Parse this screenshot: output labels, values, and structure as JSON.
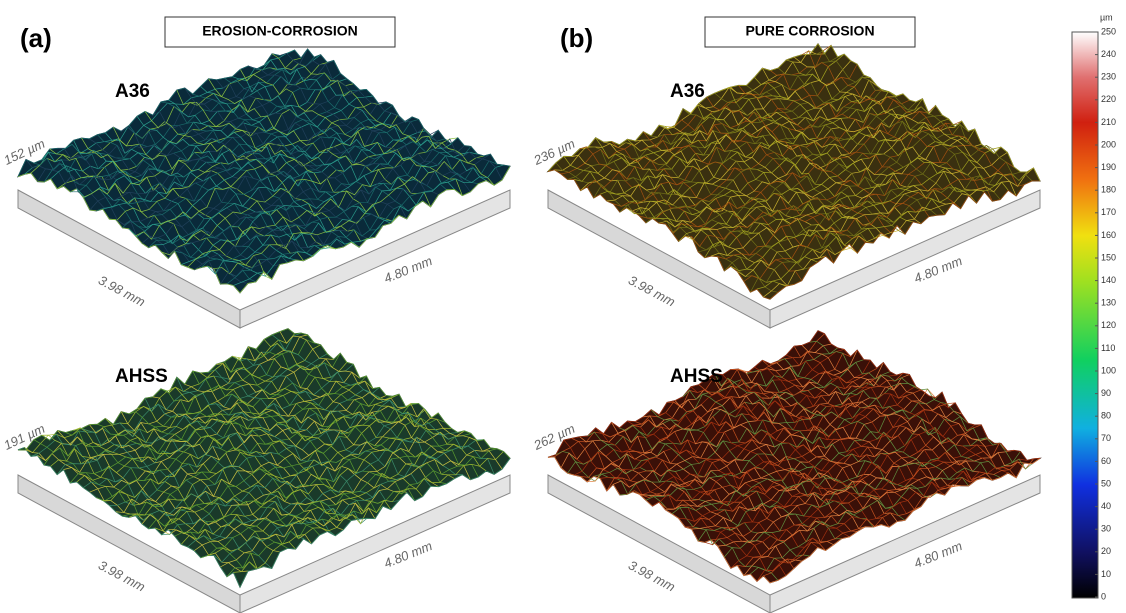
{
  "panels": [
    {
      "label": "(a)",
      "title": "EROSION-CORROSION",
      "plots": [
        {
          "sample": "A36",
          "height": "152 µm",
          "x_extent": "3.98 mm",
          "y_extent": "4.80 mm"
        },
        {
          "sample": "AHSS",
          "height": "191 µm",
          "x_extent": "3.98 mm",
          "y_extent": "4.80 mm"
        }
      ]
    },
    {
      "label": "(b)",
      "title": "PURE CORROSION",
      "plots": [
        {
          "sample": "A36",
          "height": "236 µm",
          "x_extent": "3.98 mm",
          "y_extent": "4.80 mm"
        },
        {
          "sample": "AHSS",
          "height": "262 µm",
          "x_extent": "3.98 mm",
          "y_extent": "4.80 mm"
        }
      ]
    }
  ],
  "colorbar": {
    "unit": "µm",
    "ticks": [
      0,
      10,
      20,
      30,
      40,
      50,
      60,
      70,
      80,
      90,
      100,
      110,
      120,
      130,
      140,
      150,
      160,
      170,
      180,
      190,
      200,
      210,
      220,
      230,
      240,
      250
    ]
  }
}
